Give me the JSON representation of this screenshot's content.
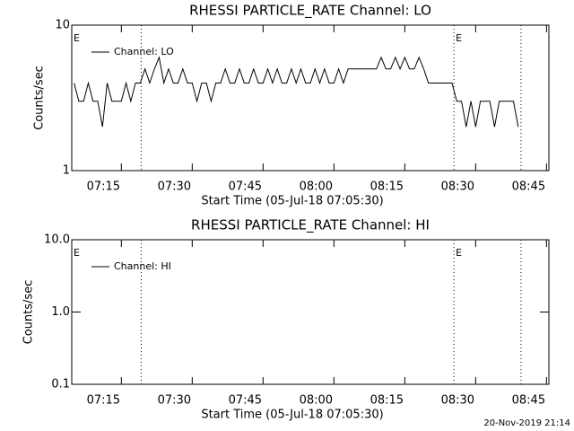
{
  "chart_data": [
    {
      "type": "line",
      "title": "RHESSI PARTICLE_RATE Channel: LO",
      "x_label": "Start Time (05-Jul-18 07:05:30)",
      "y_label": "Counts/sec",
      "log_y": true,
      "legend": "upper left",
      "xlim": [
        424.5,
        525.5
      ],
      "ylim": [
        1,
        10
      ],
      "xticks": [
        {
          "value": 435,
          "label": "07:15"
        },
        {
          "value": 450,
          "label": "07:30"
        },
        {
          "value": 465,
          "label": "07:45"
        },
        {
          "value": 480,
          "label": "08:00"
        },
        {
          "value": 495,
          "label": "08:15"
        },
        {
          "value": 510,
          "label": "08:30"
        },
        {
          "value": 525,
          "label": "08:45"
        }
      ],
      "yticks": [
        1,
        10
      ],
      "event_lines": [
        439.2,
        505.4,
        519.6
      ],
      "annotations": [
        {
          "text": "E",
          "x": 424.5
        },
        {
          "text": "E",
          "x": 505.4
        }
      ],
      "series": [
        {
          "name": "Channel: LO",
          "color": "#000000",
          "x": [
            425,
            426,
            427,
            428,
            429,
            430,
            431,
            432,
            433,
            434,
            435,
            436,
            437,
            438,
            439,
            440,
            441,
            442,
            443,
            444,
            445,
            446,
            447,
            448,
            449,
            450,
            451,
            452,
            453,
            454,
            455,
            456,
            457,
            458,
            459,
            460,
            461,
            462,
            463,
            464,
            465,
            466,
            467,
            468,
            469,
            470,
            471,
            472,
            473,
            474,
            475,
            476,
            477,
            478,
            479,
            480,
            481,
            482,
            483,
            484,
            485,
            486,
            487,
            488,
            489,
            490,
            491,
            492,
            493,
            494,
            495,
            496,
            497,
            498,
            499,
            500,
            501,
            502,
            503,
            504,
            505,
            506,
            507,
            508,
            509,
            510,
            511,
            512,
            513,
            514,
            515,
            516,
            517,
            518,
            519
          ],
          "values": [
            4,
            3,
            3,
            4,
            3,
            3,
            2,
            4,
            3,
            3,
            3,
            4,
            3,
            4,
            4,
            5,
            4,
            5,
            6,
            4,
            5,
            4,
            4,
            5,
            4,
            4,
            3,
            4,
            4,
            3,
            4,
            4,
            5,
            4,
            4,
            5,
            4,
            4,
            5,
            4,
            4,
            5,
            4,
            5,
            4,
            4,
            5,
            4,
            5,
            4,
            4,
            5,
            4,
            5,
            4,
            4,
            5,
            4,
            5,
            5,
            5,
            5,
            5,
            5,
            5,
            6,
            5,
            5,
            6,
            5,
            6,
            5,
            5,
            6,
            5,
            4,
            4,
            4,
            4,
            4,
            4,
            3,
            3,
            2,
            3,
            2,
            3,
            3,
            3,
            2,
            3,
            3,
            3,
            3,
            2
          ]
        }
      ]
    },
    {
      "type": "line",
      "title": "RHESSI PARTICLE_RATE Channel: HI",
      "x_label": "Start Time (05-Jul-18 07:05:30)",
      "y_label": "Counts/sec",
      "log_y": true,
      "legend": "upper left",
      "xlim": [
        424.5,
        525.5
      ],
      "ylim": [
        0.1,
        10
      ],
      "xticks": [
        {
          "value": 435,
          "label": "07:15"
        },
        {
          "value": 450,
          "label": "07:30"
        },
        {
          "value": 465,
          "label": "07:45"
        },
        {
          "value": 480,
          "label": "08:00"
        },
        {
          "value": 495,
          "label": "08:15"
        },
        {
          "value": 510,
          "label": "08:30"
        },
        {
          "value": 525,
          "label": "08:45"
        }
      ],
      "yticks": [
        0.1,
        {
          "value": 1,
          "label": "1.0"
        },
        {
          "value": 10,
          "label": "10.0"
        }
      ],
      "event_lines": [
        439.2,
        505.4,
        519.6
      ],
      "annotations": [
        {
          "text": "E",
          "x": 424.5
        },
        {
          "text": "E",
          "x": 505.4
        }
      ],
      "series": [
        {
          "name": "Channel: HI",
          "color": "#000000",
          "x": [],
          "values": []
        }
      ]
    }
  ],
  "footer": "20-Nov-2019 21:14"
}
